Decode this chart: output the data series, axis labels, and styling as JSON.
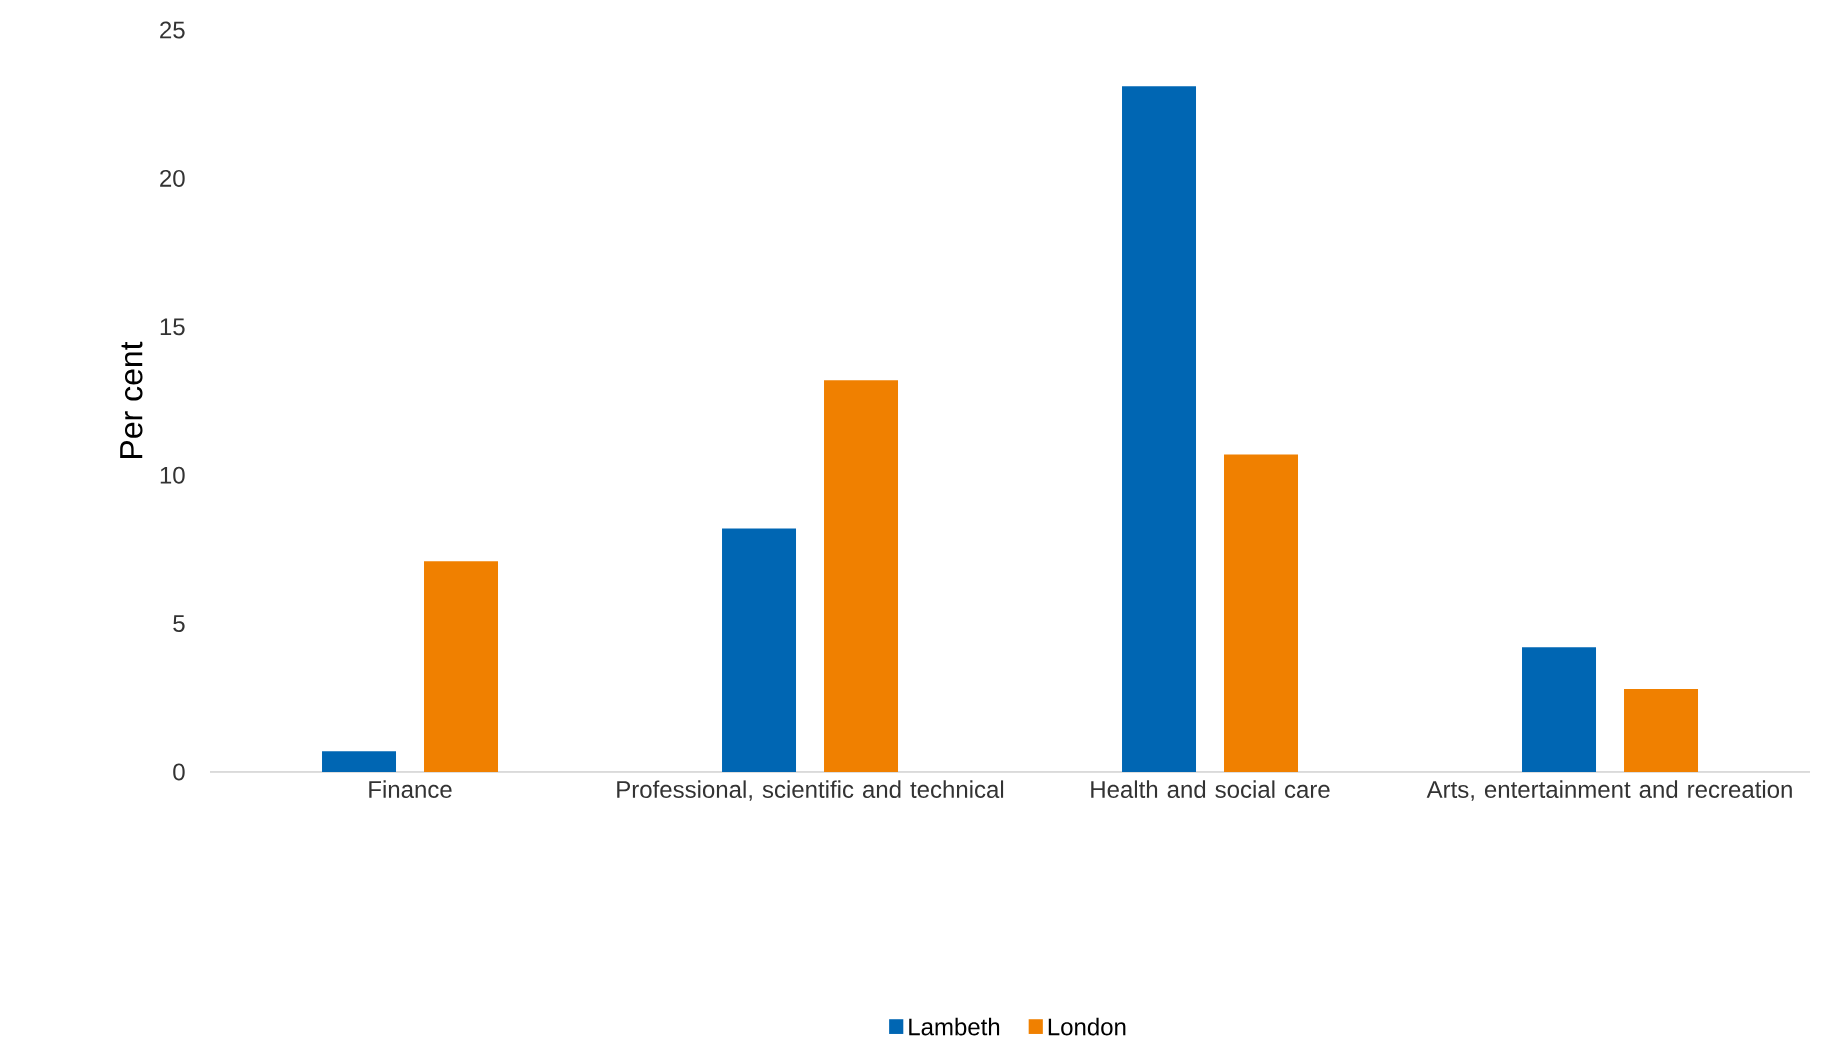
{
  "chart_data": {
    "type": "bar",
    "ylabel": "Per cent",
    "categories": [
      "Finance",
      "Professional, scientific and technical",
      "Health and social care",
      "Arts, entertainment and recreation"
    ],
    "series": [
      {
        "name": "Lambeth",
        "color": "#0066b3",
        "values": [
          0.7,
          8.2,
          23.1,
          4.2
        ]
      },
      {
        "name": "London",
        "color": "#f08000",
        "values": [
          7.1,
          13.2,
          10.7,
          2.8
        ]
      }
    ],
    "ylim": [
      0,
      25
    ],
    "yticks": [
      0,
      5,
      10,
      15,
      20,
      25
    ],
    "grid": false,
    "legend": "bottom"
  }
}
